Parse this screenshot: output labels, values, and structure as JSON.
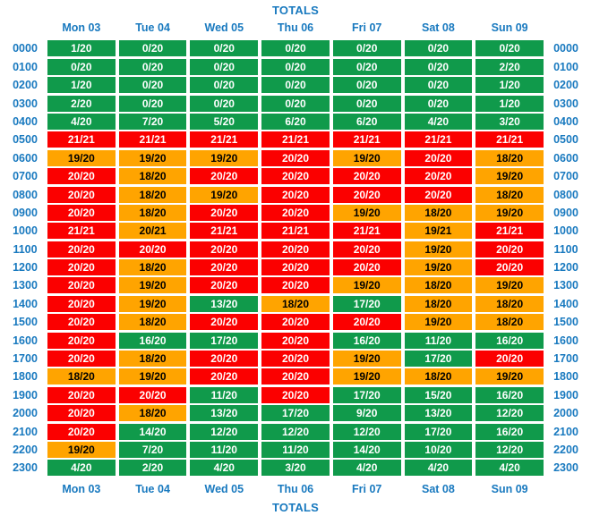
{
  "titles": {
    "top": "TOTALS",
    "bottom": "TOTALS"
  },
  "days": [
    "Mon 03",
    "Tue 04",
    "Wed 05",
    "Thu 06",
    "Fri 07",
    "Sat 08",
    "Sun 09"
  ],
  "colors": {
    "label_blue": "#1879bf",
    "green": "#109a4b",
    "orange": "#ffa400",
    "red": "#fb0000",
    "text_on_green": "#ffffff",
    "text_on_red": "#ffffff",
    "text_on_orange": "#000000"
  },
  "rows": [
    {
      "hour": "0000",
      "cells": [
        [
          "1/20",
          "green"
        ],
        [
          "0/20",
          "green"
        ],
        [
          "0/20",
          "green"
        ],
        [
          "0/20",
          "green"
        ],
        [
          "0/20",
          "green"
        ],
        [
          "0/20",
          "green"
        ],
        [
          "0/20",
          "green"
        ]
      ]
    },
    {
      "hour": "0100",
      "cells": [
        [
          "0/20",
          "green"
        ],
        [
          "0/20",
          "green"
        ],
        [
          "0/20",
          "green"
        ],
        [
          "0/20",
          "green"
        ],
        [
          "0/20",
          "green"
        ],
        [
          "0/20",
          "green"
        ],
        [
          "2/20",
          "green"
        ]
      ]
    },
    {
      "hour": "0200",
      "cells": [
        [
          "1/20",
          "green"
        ],
        [
          "0/20",
          "green"
        ],
        [
          "0/20",
          "green"
        ],
        [
          "0/20",
          "green"
        ],
        [
          "0/20",
          "green"
        ],
        [
          "0/20",
          "green"
        ],
        [
          "1/20",
          "green"
        ]
      ]
    },
    {
      "hour": "0300",
      "cells": [
        [
          "2/20",
          "green"
        ],
        [
          "0/20",
          "green"
        ],
        [
          "0/20",
          "green"
        ],
        [
          "0/20",
          "green"
        ],
        [
          "0/20",
          "green"
        ],
        [
          "0/20",
          "green"
        ],
        [
          "1/20",
          "green"
        ]
      ]
    },
    {
      "hour": "0400",
      "cells": [
        [
          "4/20",
          "green"
        ],
        [
          "7/20",
          "green"
        ],
        [
          "5/20",
          "green"
        ],
        [
          "6/20",
          "green"
        ],
        [
          "6/20",
          "green"
        ],
        [
          "4/20",
          "green"
        ],
        [
          "3/20",
          "green"
        ]
      ]
    },
    {
      "hour": "0500",
      "cells": [
        [
          "21/21",
          "red"
        ],
        [
          "21/21",
          "red"
        ],
        [
          "21/21",
          "red"
        ],
        [
          "21/21",
          "red"
        ],
        [
          "21/21",
          "red"
        ],
        [
          "21/21",
          "red"
        ],
        [
          "21/21",
          "red"
        ]
      ]
    },
    {
      "hour": "0600",
      "cells": [
        [
          "19/20",
          "orange"
        ],
        [
          "19/20",
          "orange"
        ],
        [
          "19/20",
          "orange"
        ],
        [
          "20/20",
          "red"
        ],
        [
          "19/20",
          "orange"
        ],
        [
          "20/20",
          "red"
        ],
        [
          "18/20",
          "orange"
        ]
      ]
    },
    {
      "hour": "0700",
      "cells": [
        [
          "20/20",
          "red"
        ],
        [
          "18/20",
          "orange"
        ],
        [
          "20/20",
          "red"
        ],
        [
          "20/20",
          "red"
        ],
        [
          "20/20",
          "red"
        ],
        [
          "20/20",
          "red"
        ],
        [
          "19/20",
          "orange"
        ]
      ]
    },
    {
      "hour": "0800",
      "cells": [
        [
          "20/20",
          "red"
        ],
        [
          "18/20",
          "orange"
        ],
        [
          "19/20",
          "orange"
        ],
        [
          "20/20",
          "red"
        ],
        [
          "20/20",
          "red"
        ],
        [
          "20/20",
          "red"
        ],
        [
          "18/20",
          "orange"
        ]
      ]
    },
    {
      "hour": "0900",
      "cells": [
        [
          "20/20",
          "red"
        ],
        [
          "18/20",
          "orange"
        ],
        [
          "20/20",
          "red"
        ],
        [
          "20/20",
          "red"
        ],
        [
          "19/20",
          "orange"
        ],
        [
          "18/20",
          "orange"
        ],
        [
          "19/20",
          "orange"
        ]
      ]
    },
    {
      "hour": "1000",
      "cells": [
        [
          "21/21",
          "red"
        ],
        [
          "20/21",
          "orange"
        ],
        [
          "21/21",
          "red"
        ],
        [
          "21/21",
          "red"
        ],
        [
          "21/21",
          "red"
        ],
        [
          "19/21",
          "orange"
        ],
        [
          "21/21",
          "red"
        ]
      ]
    },
    {
      "hour": "1100",
      "cells": [
        [
          "20/20",
          "red"
        ],
        [
          "20/20",
          "red"
        ],
        [
          "20/20",
          "red"
        ],
        [
          "20/20",
          "red"
        ],
        [
          "20/20",
          "red"
        ],
        [
          "19/20",
          "orange"
        ],
        [
          "20/20",
          "red"
        ]
      ]
    },
    {
      "hour": "1200",
      "cells": [
        [
          "20/20",
          "red"
        ],
        [
          "18/20",
          "orange"
        ],
        [
          "20/20",
          "red"
        ],
        [
          "20/20",
          "red"
        ],
        [
          "20/20",
          "red"
        ],
        [
          "19/20",
          "orange"
        ],
        [
          "20/20",
          "red"
        ]
      ]
    },
    {
      "hour": "1300",
      "cells": [
        [
          "20/20",
          "red"
        ],
        [
          "19/20",
          "orange"
        ],
        [
          "20/20",
          "red"
        ],
        [
          "20/20",
          "red"
        ],
        [
          "19/20",
          "orange"
        ],
        [
          "18/20",
          "orange"
        ],
        [
          "19/20",
          "orange"
        ]
      ]
    },
    {
      "hour": "1400",
      "cells": [
        [
          "20/20",
          "red"
        ],
        [
          "19/20",
          "orange"
        ],
        [
          "13/20",
          "green"
        ],
        [
          "18/20",
          "orange"
        ],
        [
          "17/20",
          "green"
        ],
        [
          "18/20",
          "orange"
        ],
        [
          "18/20",
          "orange"
        ]
      ]
    },
    {
      "hour": "1500",
      "cells": [
        [
          "20/20",
          "red"
        ],
        [
          "18/20",
          "orange"
        ],
        [
          "20/20",
          "red"
        ],
        [
          "20/20",
          "red"
        ],
        [
          "20/20",
          "red"
        ],
        [
          "19/20",
          "orange"
        ],
        [
          "18/20",
          "orange"
        ]
      ]
    },
    {
      "hour": "1600",
      "cells": [
        [
          "20/20",
          "red"
        ],
        [
          "16/20",
          "green"
        ],
        [
          "17/20",
          "green"
        ],
        [
          "20/20",
          "red"
        ],
        [
          "16/20",
          "green"
        ],
        [
          "11/20",
          "green"
        ],
        [
          "16/20",
          "green"
        ]
      ]
    },
    {
      "hour": "1700",
      "cells": [
        [
          "20/20",
          "red"
        ],
        [
          "18/20",
          "orange"
        ],
        [
          "20/20",
          "red"
        ],
        [
          "20/20",
          "red"
        ],
        [
          "19/20",
          "orange"
        ],
        [
          "17/20",
          "green"
        ],
        [
          "20/20",
          "red"
        ]
      ]
    },
    {
      "hour": "1800",
      "cells": [
        [
          "18/20",
          "orange"
        ],
        [
          "19/20",
          "orange"
        ],
        [
          "20/20",
          "red"
        ],
        [
          "20/20",
          "red"
        ],
        [
          "19/20",
          "orange"
        ],
        [
          "18/20",
          "orange"
        ],
        [
          "19/20",
          "orange"
        ]
      ]
    },
    {
      "hour": "1900",
      "cells": [
        [
          "20/20",
          "red"
        ],
        [
          "20/20",
          "red"
        ],
        [
          "11/20",
          "green"
        ],
        [
          "20/20",
          "red"
        ],
        [
          "17/20",
          "green"
        ],
        [
          "15/20",
          "green"
        ],
        [
          "16/20",
          "green"
        ]
      ]
    },
    {
      "hour": "2000",
      "cells": [
        [
          "20/20",
          "red"
        ],
        [
          "18/20",
          "orange"
        ],
        [
          "13/20",
          "green"
        ],
        [
          "17/20",
          "green"
        ],
        [
          "9/20",
          "green"
        ],
        [
          "13/20",
          "green"
        ],
        [
          "12/20",
          "green"
        ]
      ]
    },
    {
      "hour": "2100",
      "cells": [
        [
          "20/20",
          "red"
        ],
        [
          "14/20",
          "green"
        ],
        [
          "12/20",
          "green"
        ],
        [
          "12/20",
          "green"
        ],
        [
          "12/20",
          "green"
        ],
        [
          "17/20",
          "green"
        ],
        [
          "16/20",
          "green"
        ]
      ]
    },
    {
      "hour": "2200",
      "cells": [
        [
          "19/20",
          "orange"
        ],
        [
          "7/20",
          "green"
        ],
        [
          "11/20",
          "green"
        ],
        [
          "11/20",
          "green"
        ],
        [
          "14/20",
          "green"
        ],
        [
          "10/20",
          "green"
        ],
        [
          "12/20",
          "green"
        ]
      ]
    },
    {
      "hour": "2300",
      "cells": [
        [
          "4/20",
          "green"
        ],
        [
          "2/20",
          "green"
        ],
        [
          "4/20",
          "green"
        ],
        [
          "3/20",
          "green"
        ],
        [
          "4/20",
          "green"
        ],
        [
          "4/20",
          "green"
        ],
        [
          "4/20",
          "green"
        ]
      ]
    }
  ]
}
